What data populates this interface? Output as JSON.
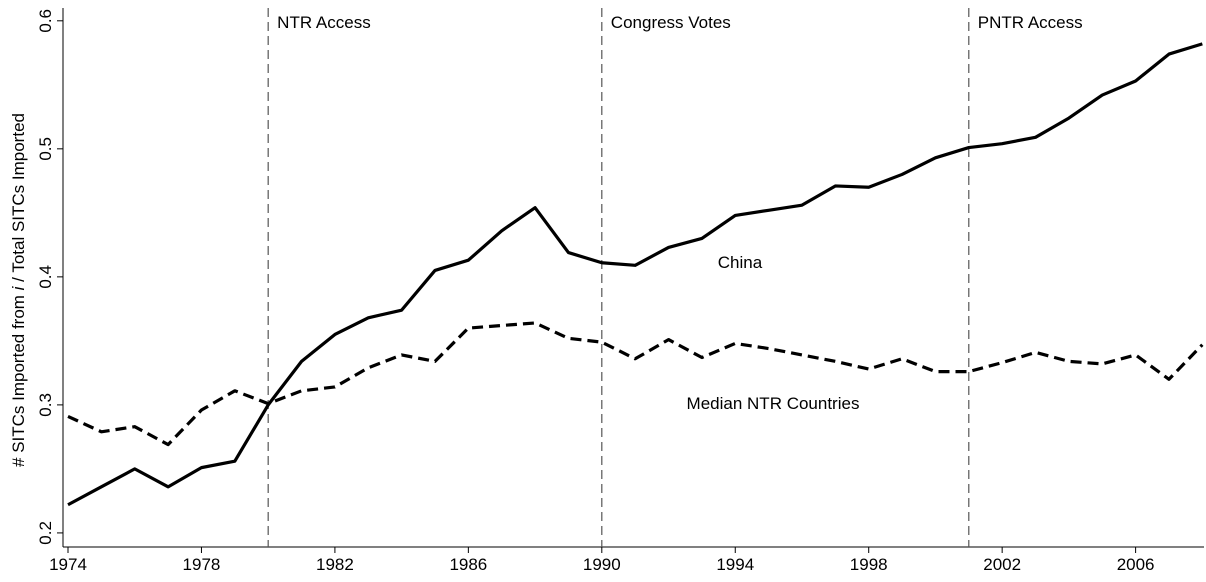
{
  "chart_data": {
    "type": "line",
    "y_label": [
      "# SITCs Imported from ",
      "i",
      " / Total SITCs Imported"
    ],
    "x": [
      1974,
      1975,
      1976,
      1977,
      1978,
      1979,
      1980,
      1981,
      1982,
      1983,
      1984,
      1985,
      1986,
      1987,
      1988,
      1989,
      1990,
      1991,
      1992,
      1993,
      1994,
      1995,
      1996,
      1997,
      1998,
      1999,
      2000,
      2001,
      2002,
      2003,
      2004,
      2005,
      2006,
      2007,
      2008
    ],
    "series": [
      {
        "name": "China",
        "color": "#000000",
        "style": "solid",
        "values": [
          0.222,
          0.236,
          0.25,
          0.236,
          0.251,
          0.256,
          0.3,
          0.334,
          0.355,
          0.368,
          0.374,
          0.405,
          0.413,
          0.436,
          0.454,
          0.419,
          0.411,
          0.409,
          0.423,
          0.43,
          0.448,
          0.452,
          0.456,
          0.471,
          0.47,
          0.48,
          0.493,
          0.501,
          0.504,
          0.509,
          0.524,
          0.542,
          0.553,
          0.574,
          0.582
        ]
      },
      {
        "name": "Median NTR Countries",
        "color": "#000000",
        "style": "dashed",
        "values": [
          0.291,
          0.279,
          0.283,
          0.269,
          0.296,
          0.311,
          0.301,
          0.311,
          0.314,
          0.329,
          0.339,
          0.334,
          0.36,
          0.362,
          0.364,
          0.352,
          0.349,
          0.336,
          0.351,
          0.337,
          0.348,
          0.344,
          0.339,
          0.334,
          0.328,
          0.336,
          0.326,
          0.326,
          0.333,
          0.341,
          0.334,
          0.332,
          0.339,
          0.32,
          0.347
        ]
      }
    ],
    "events": [
      {
        "x": 1980,
        "label": "NTR Access"
      },
      {
        "x": 1990,
        "label": "Congress Votes"
      },
      {
        "x": 2001,
        "label": "PNTR Access"
      }
    ],
    "xlim": [
      1973.85,
      2008.05
    ],
    "xticks": [
      1974,
      1978,
      1982,
      1986,
      1990,
      1994,
      1998,
      2002,
      2006
    ],
    "ylim": [
      0.189,
      0.61
    ],
    "yticks": [
      0.2,
      0.3,
      0.4,
      0.5,
      0.6
    ]
  }
}
